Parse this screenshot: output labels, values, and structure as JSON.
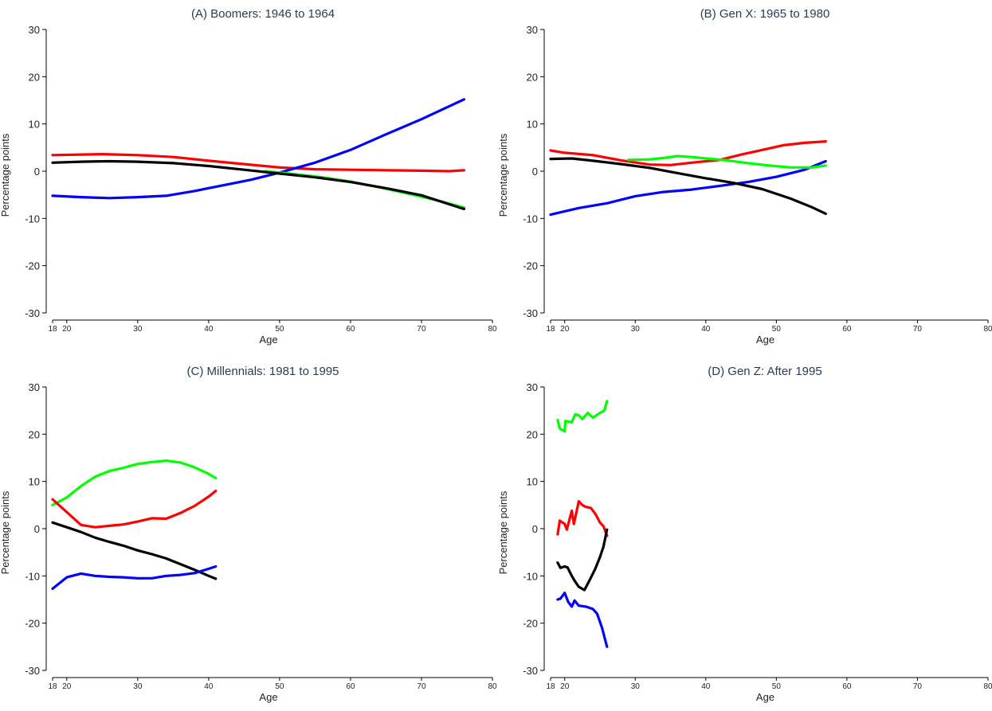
{
  "chart_data": [
    {
      "type": "line",
      "title": "(A) Boomers: 1946 to 1964",
      "xlabel": "Age",
      "ylabel": "Percentage points",
      "xlim": [
        18,
        80
      ],
      "ylim": [
        -30,
        30
      ],
      "xticks": [
        18,
        20,
        30,
        40,
        50,
        60,
        70,
        80
      ],
      "yticks": [
        30,
        20,
        10,
        0,
        -10,
        -20,
        -30
      ],
      "grid": false,
      "series": [
        {
          "color": "#ff0000",
          "points": [
            [
              18,
              3.4
            ],
            [
              25,
              3.6
            ],
            [
              30,
              3.4
            ],
            [
              35,
              3.0
            ],
            [
              40,
              2.2
            ],
            [
              45,
              1.5
            ],
            [
              50,
              0.8
            ],
            [
              55,
              0.4
            ],
            [
              60,
              0.3
            ],
            [
              65,
              0.2
            ],
            [
              70,
              0.1
            ],
            [
              74,
              0.0
            ],
            [
              76,
              0.2
            ]
          ]
        },
        {
          "color": "#0000ff",
          "points": [
            [
              18,
              -5.2
            ],
            [
              22,
              -5.5
            ],
            [
              26,
              -5.7
            ],
            [
              30,
              -5.5
            ],
            [
              34,
              -5.2
            ],
            [
              38,
              -4.2
            ],
            [
              42,
              -3.0
            ],
            [
              46,
              -1.8
            ],
            [
              50,
              -0.3
            ],
            [
              55,
              1.8
            ],
            [
              60,
              4.5
            ],
            [
              65,
              7.8
            ],
            [
              70,
              11.0
            ],
            [
              76,
              15.2
            ]
          ]
        },
        {
          "color": "#00ff00",
          "points": [
            [
              48,
              0.0
            ],
            [
              52,
              -0.6
            ],
            [
              56,
              -1.3
            ],
            [
              60,
              -2.2
            ],
            [
              64,
              -3.4
            ],
            [
              68,
              -4.7
            ],
            [
              72,
              -6.1
            ],
            [
              76,
              -7.7
            ]
          ]
        },
        {
          "color": "#000000",
          "points": [
            [
              18,
              1.8
            ],
            [
              22,
              2.0
            ],
            [
              26,
              2.1
            ],
            [
              30,
              2.0
            ],
            [
              35,
              1.7
            ],
            [
              40,
              1.1
            ],
            [
              45,
              0.3
            ],
            [
              50,
              -0.5
            ],
            [
              55,
              -1.3
            ],
            [
              60,
              -2.3
            ],
            [
              65,
              -3.6
            ],
            [
              70,
              -5.1
            ],
            [
              76,
              -8.0
            ]
          ]
        }
      ]
    },
    {
      "type": "line",
      "title": "(B) Gen X: 1965 to 1980",
      "xlabel": "Age",
      "ylabel": "Percentage points",
      "xlim": [
        18,
        80
      ],
      "ylim": [
        -30,
        30
      ],
      "xticks": [
        18,
        20,
        30,
        40,
        50,
        60,
        70,
        80
      ],
      "yticks": [
        30,
        20,
        10,
        0,
        -10,
        -20,
        -30
      ],
      "grid": false,
      "series": [
        {
          "color": "#ff0000",
          "points": [
            [
              18,
              4.4
            ],
            [
              20,
              3.9
            ],
            [
              24,
              3.4
            ],
            [
              28,
              2.3
            ],
            [
              32,
              1.4
            ],
            [
              35,
              1.3
            ],
            [
              38,
              1.8
            ],
            [
              42,
              2.4
            ],
            [
              45,
              3.5
            ],
            [
              48,
              4.5
            ],
            [
              51,
              5.5
            ],
            [
              54,
              6.0
            ],
            [
              57,
              6.3
            ]
          ]
        },
        {
          "color": "#0000ff",
          "points": [
            [
              18,
              -9.2
            ],
            [
              22,
              -7.8
            ],
            [
              26,
              -6.8
            ],
            [
              30,
              -5.3
            ],
            [
              34,
              -4.4
            ],
            [
              38,
              -3.9
            ],
            [
              42,
              -3.1
            ],
            [
              46,
              -2.3
            ],
            [
              50,
              -1.2
            ],
            [
              54,
              0.3
            ],
            [
              57,
              2.1
            ]
          ]
        },
        {
          "color": "#00ff00",
          "points": [
            [
              29,
              2.4
            ],
            [
              32,
              2.5
            ],
            [
              34,
              2.8
            ],
            [
              36,
              3.2
            ],
            [
              38,
              3.0
            ],
            [
              40,
              2.7
            ],
            [
              43,
              2.3
            ],
            [
              46,
              1.7
            ],
            [
              49,
              1.2
            ],
            [
              52,
              0.8
            ],
            [
              55,
              0.8
            ],
            [
              57,
              1.2
            ]
          ]
        },
        {
          "color": "#000000",
          "points": [
            [
              18,
              2.6
            ],
            [
              21,
              2.7
            ],
            [
              24,
              2.2
            ],
            [
              28,
              1.5
            ],
            [
              32,
              0.7
            ],
            [
              36,
              -0.4
            ],
            [
              40,
              -1.5
            ],
            [
              44,
              -2.5
            ],
            [
              48,
              -3.8
            ],
            [
              52,
              -5.8
            ],
            [
              55,
              -7.6
            ],
            [
              57,
              -9.0
            ]
          ]
        }
      ]
    },
    {
      "type": "line",
      "title": "(C) Millennials: 1981 to 1995",
      "xlabel": "Age",
      "ylabel": "Percentage points",
      "xlim": [
        18,
        80
      ],
      "ylim": [
        -30,
        30
      ],
      "xticks": [
        18,
        20,
        30,
        40,
        50,
        60,
        70,
        80
      ],
      "yticks": [
        30,
        20,
        10,
        0,
        -10,
        -20,
        -30
      ],
      "grid": false,
      "series": [
        {
          "color": "#00ff00",
          "points": [
            [
              18,
              5.0
            ],
            [
              20,
              6.6
            ],
            [
              22,
              9.0
            ],
            [
              24,
              11.0
            ],
            [
              26,
              12.2
            ],
            [
              28,
              12.9
            ],
            [
              30,
              13.7
            ],
            [
              32,
              14.1
            ],
            [
              34,
              14.4
            ],
            [
              36,
              14.0
            ],
            [
              38,
              13.0
            ],
            [
              40,
              11.6
            ],
            [
              41,
              10.7
            ]
          ]
        },
        {
          "color": "#ff0000",
          "points": [
            [
              18,
              6.2
            ],
            [
              20,
              3.5
            ],
            [
              22,
              0.8
            ],
            [
              24,
              0.3
            ],
            [
              26,
              0.6
            ],
            [
              28,
              0.9
            ],
            [
              30,
              1.5
            ],
            [
              32,
              2.2
            ],
            [
              34,
              2.1
            ],
            [
              36,
              3.3
            ],
            [
              38,
              4.8
            ],
            [
              40,
              6.8
            ],
            [
              41,
              8.0
            ]
          ]
        },
        {
          "color": "#000000",
          "points": [
            [
              18,
              1.3
            ],
            [
              20,
              0.3
            ],
            [
              22,
              -0.7
            ],
            [
              24,
              -1.9
            ],
            [
              26,
              -2.8
            ],
            [
              28,
              -3.6
            ],
            [
              30,
              -4.6
            ],
            [
              32,
              -5.4
            ],
            [
              34,
              -6.3
            ],
            [
              36,
              -7.5
            ],
            [
              38,
              -8.7
            ],
            [
              40,
              -10.0
            ],
            [
              41,
              -10.6
            ]
          ]
        },
        {
          "color": "#0000ff",
          "points": [
            [
              18,
              -12.7
            ],
            [
              20,
              -10.3
            ],
            [
              22,
              -9.5
            ],
            [
              24,
              -10.0
            ],
            [
              26,
              -10.2
            ],
            [
              28,
              -10.3
            ],
            [
              30,
              -10.5
            ],
            [
              32,
              -10.5
            ],
            [
              34,
              -10.0
            ],
            [
              36,
              -9.8
            ],
            [
              38,
              -9.4
            ],
            [
              40,
              -8.5
            ],
            [
              41,
              -8.0
            ]
          ]
        }
      ]
    },
    {
      "type": "line",
      "title": "(D) Gen Z: After 1995",
      "xlabel": "Age",
      "ylabel": "Percentage points",
      "xlim": [
        18,
        80
      ],
      "ylim": [
        -30,
        30
      ],
      "xticks": [
        18,
        20,
        30,
        40,
        50,
        60,
        70,
        80
      ],
      "yticks": [
        30,
        20,
        10,
        0,
        -10,
        -20,
        -30
      ],
      "grid": false,
      "series": [
        {
          "color": "#00ff00",
          "points": [
            [
              19,
              23.0
            ],
            [
              19.3,
              21.2
            ],
            [
              20,
              20.6
            ],
            [
              20.1,
              22.8
            ],
            [
              21,
              22.5
            ],
            [
              21.5,
              24.2
            ],
            [
              22,
              24.0
            ],
            [
              22.5,
              23.2
            ],
            [
              23.3,
              24.5
            ],
            [
              24,
              23.5
            ],
            [
              25,
              24.5
            ],
            [
              25.6,
              25.0
            ],
            [
              26,
              27.0
            ]
          ]
        },
        {
          "color": "#ff0000",
          "points": [
            [
              19,
              -1.2
            ],
            [
              19.3,
              1.7
            ],
            [
              20,
              1.0
            ],
            [
              20.3,
              -0.2
            ],
            [
              21,
              3.8
            ],
            [
              21.3,
              1.0
            ],
            [
              22,
              5.8
            ],
            [
              22.5,
              5.0
            ],
            [
              23,
              4.6
            ],
            [
              23.7,
              4.4
            ],
            [
              24.4,
              3.0
            ],
            [
              25,
              1.3
            ],
            [
              25.5,
              0.5
            ],
            [
              26,
              -1.5
            ]
          ]
        },
        {
          "color": "#000000",
          "points": [
            [
              19,
              -7.2
            ],
            [
              19.4,
              -8.3
            ],
            [
              20,
              -8.0
            ],
            [
              20.4,
              -8.2
            ],
            [
              21,
              -10.0
            ],
            [
              21.4,
              -11.0
            ],
            [
              22,
              -12.3
            ],
            [
              22.8,
              -13.0
            ],
            [
              23.5,
              -11.0
            ],
            [
              24.3,
              -8.6
            ],
            [
              25,
              -6.0
            ],
            [
              25.5,
              -3.8
            ],
            [
              26,
              -0.2
            ]
          ]
        },
        {
          "color": "#0000ff",
          "points": [
            [
              19,
              -15.0
            ],
            [
              19.4,
              -14.8
            ],
            [
              20,
              -13.6
            ],
            [
              20.5,
              -15.5
            ],
            [
              21,
              -16.5
            ],
            [
              21.4,
              -15.2
            ],
            [
              22,
              -16.3
            ],
            [
              23,
              -16.5
            ],
            [
              24,
              -17.0
            ],
            [
              24.6,
              -18.0
            ],
            [
              25.3,
              -21.0
            ],
            [
              26,
              -25.0
            ]
          ]
        }
      ]
    }
  ]
}
